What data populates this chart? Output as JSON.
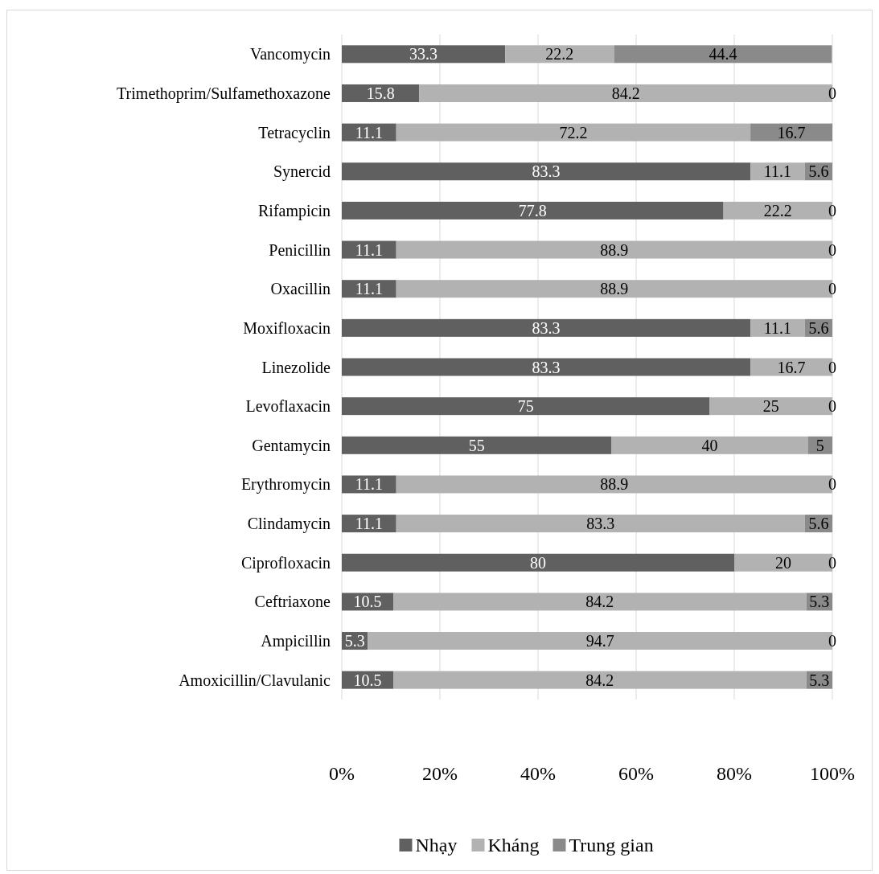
{
  "chart_data": {
    "type": "bar",
    "orientation": "horizontal",
    "stacked": true,
    "categories": [
      "Vancomycin",
      "Trimethoprim/Sulfamethoxazone",
      "Tetracyclin",
      "Synercid",
      "Rifampicin",
      "Penicillin",
      "Oxacillin",
      "Moxifloxacin",
      "Linezolide",
      "Levoflaxacin",
      "Gentamycin",
      "Erythromycin",
      "Clindamycin",
      "Ciprofloxacin",
      "Ceftriaxone",
      "Ampicillin",
      "Amoxicillin/Clavulanic"
    ],
    "series": [
      {
        "name": "Nhạy",
        "color": "#606060",
        "values": [
          33.3,
          15.8,
          11.1,
          83.3,
          77.8,
          11.1,
          11.1,
          83.3,
          83.3,
          75,
          55,
          11.1,
          11.1,
          80,
          10.5,
          5.3,
          10.5
        ]
      },
      {
        "name": "Kháng",
        "color": "#b2b2b2",
        "values": [
          22.2,
          84.2,
          72.2,
          11.1,
          22.2,
          88.9,
          88.9,
          11.1,
          16.7,
          25,
          40,
          88.9,
          83.3,
          20,
          84.2,
          94.7,
          84.2
        ]
      },
      {
        "name": "Trung gian",
        "color": "#8a8a8a",
        "values": [
          44.4,
          0,
          16.7,
          5.6,
          0,
          0,
          0,
          5.6,
          0,
          0,
          5,
          0,
          5.6,
          0,
          5.3,
          0,
          5.3
        ]
      }
    ],
    "xlim": [
      0,
      100
    ],
    "xticks": [
      {
        "value": 0,
        "label": "0%"
      },
      {
        "value": 20,
        "label": "20%"
      },
      {
        "value": 40,
        "label": "40%"
      },
      {
        "value": 60,
        "label": "60%"
      },
      {
        "value": 80,
        "label": "80%"
      },
      {
        "value": 100,
        "label": "100%"
      }
    ],
    "grid": "x",
    "legend": "bottom",
    "data_labels": true
  }
}
